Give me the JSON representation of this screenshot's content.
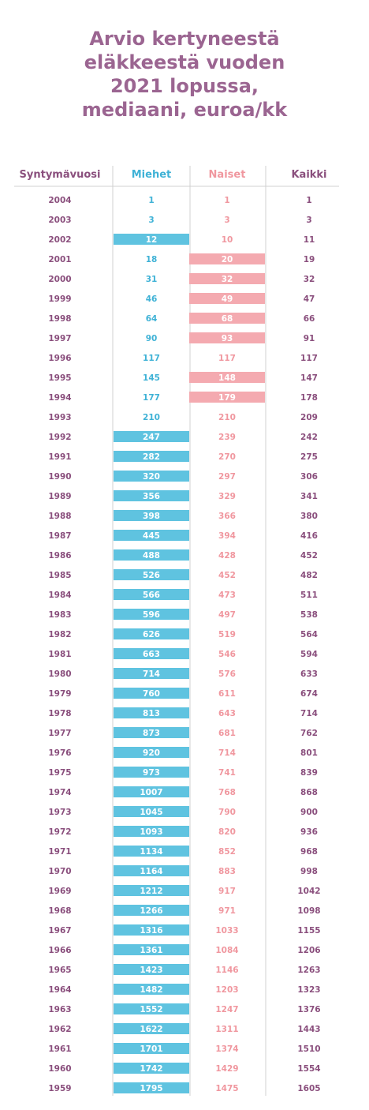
{
  "title_lines": [
    "Arvio kertyneestä",
    "eläkkeestä vuoden",
    "2021 lopussa,",
    "mediaani, euroa/kk"
  ],
  "colors": {
    "title": "#9b6591",
    "men": "#5fc3e0",
    "women": "#f4aab0",
    "men_text": "#3fb2d6",
    "women_text": "#f0979f",
    "all_text": "#8a4f7d",
    "grid": "#d0d0d0"
  },
  "chart_data": {
    "type": "table",
    "title": "Arvio kertyneestä eläkkeestä vuoden 2021 lopussa, mediaani, euroa/kk",
    "columns": [
      "Syntymävuosi",
      "Miehet",
      "Naiset",
      "Kaikki"
    ],
    "highlight": "Highlighted cell: the higher of Miehet and Naiset in each row",
    "rows": [
      {
        "year": "2004",
        "men": 1,
        "women": 1,
        "all": 1
      },
      {
        "year": "2003",
        "men": 3,
        "women": 3,
        "all": 3
      },
      {
        "year": "2002",
        "men": 12,
        "women": 10,
        "all": 11
      },
      {
        "year": "2001",
        "men": 18,
        "women": 20,
        "all": 19
      },
      {
        "year": "2000",
        "men": 31,
        "women": 32,
        "all": 32
      },
      {
        "year": "1999",
        "men": 46,
        "women": 49,
        "all": 47
      },
      {
        "year": "1998",
        "men": 64,
        "women": 68,
        "all": 66
      },
      {
        "year": "1997",
        "men": 90,
        "women": 93,
        "all": 91
      },
      {
        "year": "1996",
        "men": 117,
        "women": 117,
        "all": 117
      },
      {
        "year": "1995",
        "men": 145,
        "women": 148,
        "all": 147
      },
      {
        "year": "1994",
        "men": 177,
        "women": 179,
        "all": 178
      },
      {
        "year": "1993",
        "men": 210,
        "women": 210,
        "all": 209
      },
      {
        "year": "1992",
        "men": 247,
        "women": 239,
        "all": 242
      },
      {
        "year": "1991",
        "men": 282,
        "women": 270,
        "all": 275
      },
      {
        "year": "1990",
        "men": 320,
        "women": 297,
        "all": 306
      },
      {
        "year": "1989",
        "men": 356,
        "women": 329,
        "all": 341
      },
      {
        "year": "1988",
        "men": 398,
        "women": 366,
        "all": 380
      },
      {
        "year": "1987",
        "men": 445,
        "women": 394,
        "all": 416
      },
      {
        "year": "1986",
        "men": 488,
        "women": 428,
        "all": 452
      },
      {
        "year": "1985",
        "men": 526,
        "women": 452,
        "all": 482
      },
      {
        "year": "1984",
        "men": 566,
        "women": 473,
        "all": 511
      },
      {
        "year": "1983",
        "men": 596,
        "women": 497,
        "all": 538
      },
      {
        "year": "1982",
        "men": 626,
        "women": 519,
        "all": 564
      },
      {
        "year": "1981",
        "men": 663,
        "women": 546,
        "all": 594
      },
      {
        "year": "1980",
        "men": 714,
        "women": 576,
        "all": 633
      },
      {
        "year": "1979",
        "men": 760,
        "women": 611,
        "all": 674
      },
      {
        "year": "1978",
        "men": 813,
        "women": 643,
        "all": 714
      },
      {
        "year": "1977",
        "men": 873,
        "women": 681,
        "all": 762
      },
      {
        "year": "1976",
        "men": 920,
        "women": 714,
        "all": 801
      },
      {
        "year": "1975",
        "men": 973,
        "women": 741,
        "all": 839
      },
      {
        "year": "1974",
        "men": 1007,
        "women": 768,
        "all": 868
      },
      {
        "year": "1973",
        "men": 1045,
        "women": 790,
        "all": 900
      },
      {
        "year": "1972",
        "men": 1093,
        "women": 820,
        "all": 936
      },
      {
        "year": "1971",
        "men": 1134,
        "women": 852,
        "all": 968
      },
      {
        "year": "1970",
        "men": 1164,
        "women": 883,
        "all": 998
      },
      {
        "year": "1969",
        "men": 1212,
        "women": 917,
        "all": 1042
      },
      {
        "year": "1968",
        "men": 1266,
        "women": 971,
        "all": 1098
      },
      {
        "year": "1967",
        "men": 1316,
        "women": 1033,
        "all": 1155
      },
      {
        "year": "1966",
        "men": 1361,
        "women": 1084,
        "all": 1206
      },
      {
        "year": "1965",
        "men": 1423,
        "women": 1146,
        "all": 1263
      },
      {
        "year": "1964",
        "men": 1482,
        "women": 1203,
        "all": 1323
      },
      {
        "year": "1963",
        "men": 1552,
        "women": 1247,
        "all": 1376
      },
      {
        "year": "1962",
        "men": 1622,
        "women": 1311,
        "all": 1443
      },
      {
        "year": "1961",
        "men": 1701,
        "women": 1374,
        "all": 1510
      },
      {
        "year": "1960",
        "men": 1742,
        "women": 1429,
        "all": 1554
      },
      {
        "year": "1959",
        "men": 1795,
        "women": 1475,
        "all": 1605
      }
    ]
  }
}
